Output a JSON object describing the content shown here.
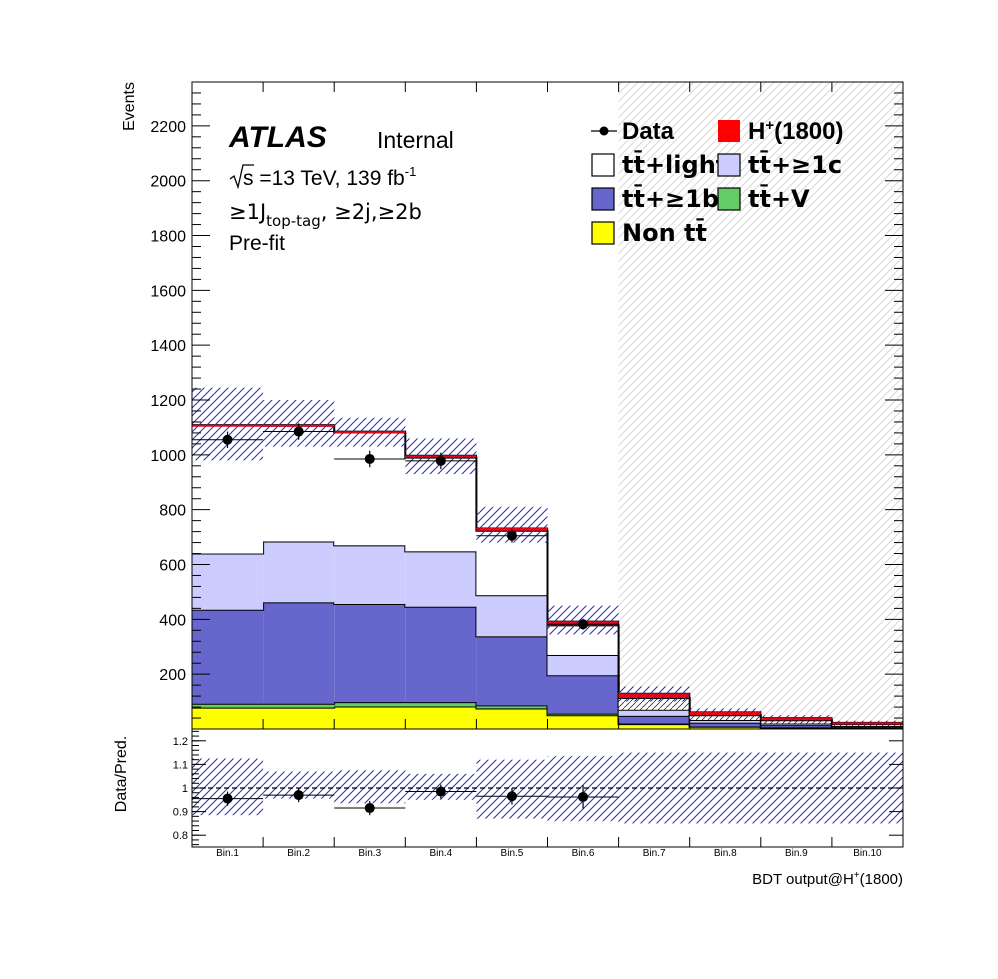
{
  "chart_data": [
    {
      "type": "bar",
      "stacked": true,
      "ylabel": "Events",
      "ylim": [
        0,
        2360
      ],
      "yticks": [
        200,
        400,
        600,
        800,
        1000,
        1200,
        1400,
        1600,
        1800,
        2000,
        2200
      ],
      "categories": [
        "Bin.1",
        "Bin.2",
        "Bin.3",
        "Bin.4",
        "Bin.5",
        "Bin.6",
        "Bin.7",
        "Bin.8",
        "Bin.9",
        "Bin.10"
      ],
      "series": [
        {
          "name": "Non tt̄",
          "color": "#ffff00",
          "values": [
            78,
            78,
            82,
            82,
            75,
            50,
            18,
            8,
            5,
            3
          ]
        },
        {
          "name": "tt̄+V",
          "color": "#66cc66",
          "values": [
            14,
            14,
            16,
            16,
            11,
            6,
            2,
            1,
            1,
            1
          ]
        },
        {
          "name": "tt̄+≥1b",
          "color": "#6666cc",
          "values": [
            343,
            370,
            358,
            348,
            252,
            140,
            28,
            14,
            8,
            4
          ]
        },
        {
          "name": "tt̄+≥1c",
          "color": "#ccccff",
          "values": [
            205,
            222,
            214,
            202,
            150,
            74,
            22,
            10,
            6,
            3
          ]
        },
        {
          "name": "tt̄+light",
          "color": "#ffffff",
          "values": [
            467,
            422,
            412,
            342,
            235,
            108,
            43,
            17,
            12,
            7
          ]
        },
        {
          "name": "H+(1800)",
          "color": "#ff0000",
          "values": [
            3,
            4,
            4,
            8,
            10,
            15,
            17,
            12,
            9,
            6
          ]
        }
      ],
      "data": {
        "name": "Data",
        "values": [
          1055,
          1085,
          985,
          978,
          705,
          382,
          null,
          null,
          null,
          null
        ],
        "errors": [
          30,
          30,
          30,
          30,
          25,
          20,
          null,
          null,
          null,
          null
        ]
      },
      "uncertainty_band": {
        "low": [
          980,
          1030,
          1030,
          930,
          680,
          345,
          100,
          50,
          30,
          15
        ],
        "high": [
          1245,
          1200,
          1135,
          1060,
          810,
          450,
          155,
          75,
          50,
          30
        ]
      },
      "blinded_from_bin": 7,
      "legend": {
        "placement": "top-right",
        "entries": [
          "Data",
          "H+(1800)",
          "tt̄+light",
          "tt̄+≥1c",
          "tt̄+≥1b",
          "tt̄+V",
          "Non tt̄"
        ]
      },
      "annotations": {
        "experiment": "ATLAS",
        "status": "Internal",
        "energy_a": "s",
        "energy_b": " =13 TeV, 139 fb",
        "energy_exp": "-1",
        "selection_a": "≥1J",
        "selection_sub": "top-tag",
        "selection_b": ", ≥2j,≥2b",
        "fit_state": "Pre-fit"
      }
    },
    {
      "type": "scatter",
      "ylabel": "Data/Pred.",
      "ylim": [
        0.75,
        1.25
      ],
      "yticks": [
        "0.8",
        "0.9",
        "1",
        "1.1",
        "1.2"
      ],
      "xlabel_main": "BDT output@H",
      "xlabel_sup": "+",
      "xlabel_tail": "(1800)",
      "ratio": [
        0.955,
        0.97,
        0.915,
        0.985,
        0.965,
        0.962,
        null,
        null,
        null,
        null
      ],
      "ratio_errors": [
        0.03,
        0.03,
        0.03,
        0.03,
        0.035,
        0.05,
        null,
        null,
        null,
        null
      ],
      "band_low": [
        0.885,
        0.955,
        0.935,
        0.95,
        0.87,
        0.86,
        0.85,
        0.85,
        0.85,
        0.85
      ],
      "band_high": [
        1.125,
        1.07,
        1.075,
        1.06,
        1.12,
        1.135,
        1.15,
        1.15,
        1.15,
        1.15
      ],
      "reference_line": 1.0
    }
  ]
}
